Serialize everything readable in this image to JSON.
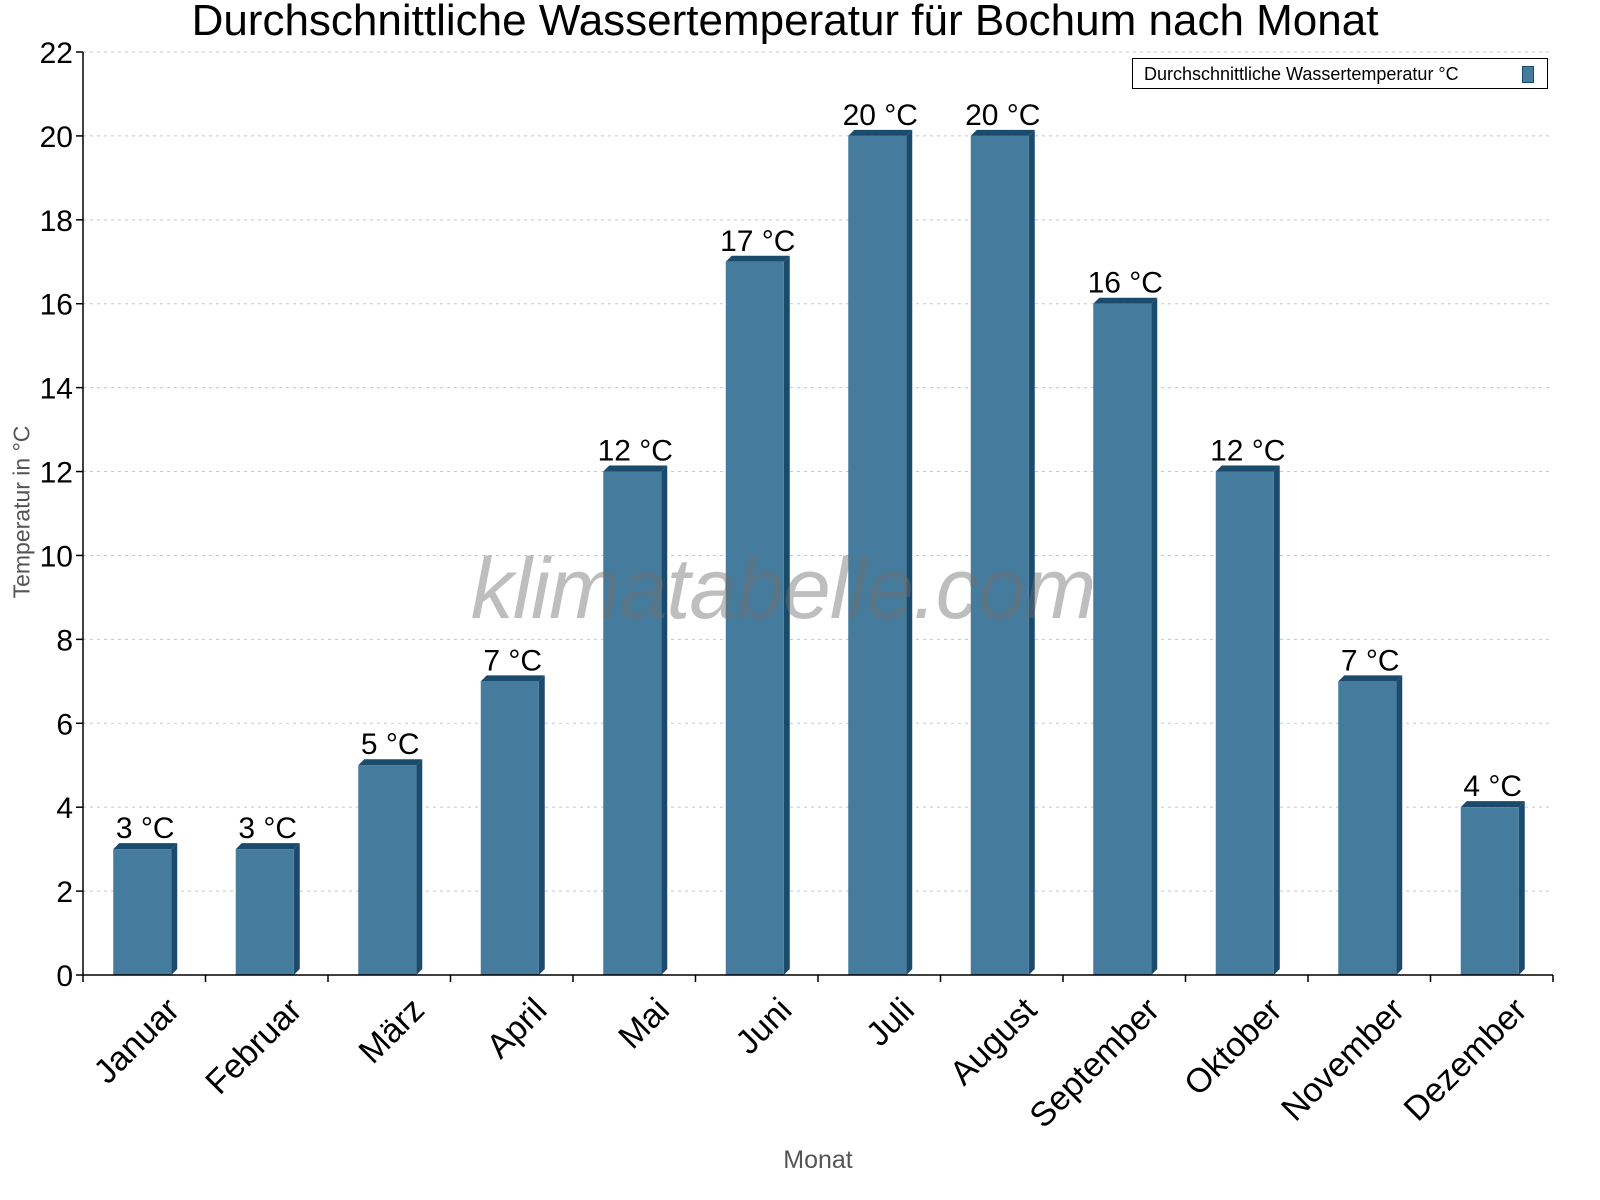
{
  "chart_data": {
    "type": "bar",
    "title": "Durchschnittliche Wassertemperatur für Bochum nach Monat",
    "xlabel": "Monat",
    "ylabel": "Temperatur in °C",
    "categories": [
      "Januar",
      "Februar",
      "März",
      "April",
      "Mai",
      "Juni",
      "Juli",
      "August",
      "September",
      "Oktober",
      "November",
      "Dezember"
    ],
    "series": [
      {
        "name": "Durchschnittliche Wassertemperatur °C",
        "values": [
          3,
          3,
          5,
          7,
          12,
          17,
          20,
          20,
          16,
          12,
          7,
          4
        ],
        "labels": [
          "3 °C",
          "3 °C",
          "5 °C",
          "7 °C",
          "12 °C",
          "17 °C",
          "20 °C",
          "20 °C",
          "16 °C",
          "12 °C",
          "7 °C",
          "4 °C"
        ],
        "color": "#457b9d",
        "shade_color": "#1a4a6c"
      }
    ],
    "ylim": [
      0,
      22
    ],
    "yticks": [
      0,
      2,
      4,
      6,
      8,
      10,
      12,
      14,
      16,
      18,
      20,
      22
    ],
    "grid": true,
    "legend_position": "top-right",
    "watermark": "klimatabelle.com"
  }
}
